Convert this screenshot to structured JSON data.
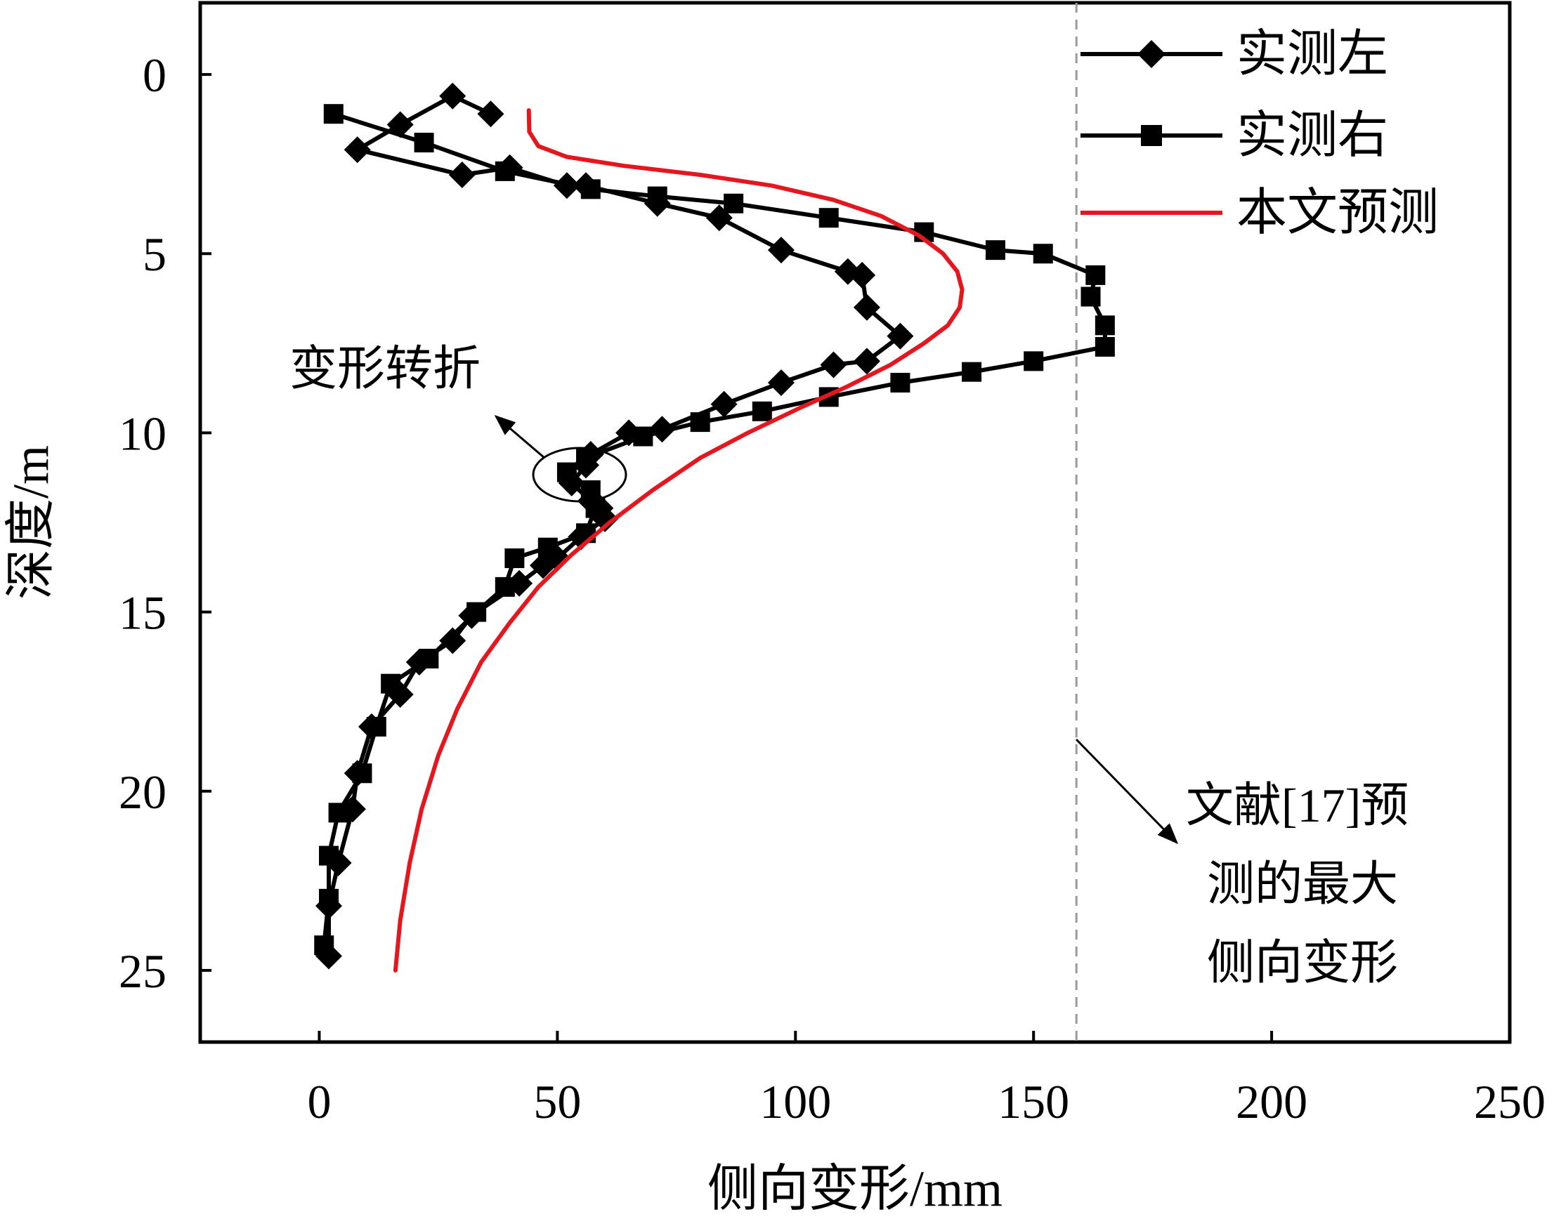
{
  "chart_data": {
    "type": "line",
    "title": "",
    "xlabel": "侧向变形/mm",
    "ylabel": "深度/m",
    "xlim": [
      -25,
      250
    ],
    "ylim": [
      -2,
      27
    ],
    "y_inverted": true,
    "grid": false,
    "legend_position": "top-right",
    "x_ticks": [
      0,
      50,
      100,
      150,
      200,
      250
    ],
    "y_ticks": [
      0,
      5,
      10,
      15,
      20,
      25
    ],
    "series": [
      {
        "name": "实测左",
        "color": "#000000",
        "marker": "diamond",
        "points": [
          [
            36,
            1.1
          ],
          [
            28,
            0.6
          ],
          [
            17,
            1.4
          ],
          [
            8,
            2.1
          ],
          [
            30,
            2.8
          ],
          [
            40,
            2.6
          ],
          [
            52,
            3.1
          ],
          [
            56,
            3.1
          ],
          [
            71,
            3.6
          ],
          [
            84,
            4.0
          ],
          [
            97,
            4.9
          ],
          [
            111,
            5.5
          ],
          [
            114,
            5.6
          ],
          [
            115,
            6.5
          ],
          [
            122,
            7.3
          ],
          [
            115,
            8.0
          ],
          [
            108,
            8.1
          ],
          [
            97,
            8.6
          ],
          [
            85,
            9.2
          ],
          [
            72,
            9.9
          ],
          [
            65,
            10.0
          ],
          [
            57,
            10.6
          ],
          [
            56,
            10.9
          ],
          [
            53,
            11.4
          ],
          [
            57,
            11.9
          ],
          [
            59,
            12.1
          ],
          [
            60,
            12.4
          ],
          [
            55,
            12.9
          ],
          [
            50,
            13.5
          ],
          [
            47,
            13.7
          ],
          [
            42,
            14.2
          ],
          [
            32,
            15.1
          ],
          [
            28,
            15.8
          ],
          [
            21,
            16.4
          ],
          [
            17,
            17.3
          ],
          [
            11,
            18.2
          ],
          [
            8,
            19.5
          ],
          [
            7,
            20.5
          ],
          [
            4,
            22.0
          ],
          [
            2,
            23.2
          ],
          [
            2,
            24.6
          ]
        ]
      },
      {
        "name": "实测右",
        "color": "#000000",
        "marker": "square",
        "points": [
          [
            3,
            1.1
          ],
          [
            22,
            1.9
          ],
          [
            39,
            2.7
          ],
          [
            57,
            3.2
          ],
          [
            71,
            3.4
          ],
          [
            87,
            3.6
          ],
          [
            107,
            4.0
          ],
          [
            127,
            4.4
          ],
          [
            142,
            4.9
          ],
          [
            152,
            5.0
          ],
          [
            163,
            5.6
          ],
          [
            162,
            6.2
          ],
          [
            165,
            7.0
          ],
          [
            165,
            7.6
          ],
          [
            150,
            8.0
          ],
          [
            137,
            8.3
          ],
          [
            122,
            8.6
          ],
          [
            107,
            9.0
          ],
          [
            93,
            9.4
          ],
          [
            80,
            9.7
          ],
          [
            68,
            10.1
          ],
          [
            56,
            10.7
          ],
          [
            52,
            11.1
          ],
          [
            57,
            11.6
          ],
          [
            58,
            12.1
          ],
          [
            56,
            12.8
          ],
          [
            48,
            13.2
          ],
          [
            41,
            13.5
          ],
          [
            39,
            14.3
          ],
          [
            33,
            15.0
          ],
          [
            23,
            16.3
          ],
          [
            15,
            17.0
          ],
          [
            12,
            18.2
          ],
          [
            9,
            19.5
          ],
          [
            4,
            20.6
          ],
          [
            2,
            21.8
          ],
          [
            2,
            23.0
          ],
          [
            1,
            24.3
          ]
        ]
      },
      {
        "name": "本文预测",
        "color": "#e5161e",
        "marker": "none",
        "points": [
          [
            44,
            1.0
          ],
          [
            44.1,
            1.6
          ],
          [
            46,
            2.0
          ],
          [
            52,
            2.3
          ],
          [
            64,
            2.55
          ],
          [
            80,
            2.8
          ],
          [
            95,
            3.1
          ],
          [
            108,
            3.5
          ],
          [
            118,
            3.95
          ],
          [
            126,
            4.5
          ],
          [
            131,
            5.0
          ],
          [
            134,
            5.5
          ],
          [
            135,
            6.0
          ],
          [
            134.5,
            6.5
          ],
          [
            132,
            7.0
          ],
          [
            127,
            7.5
          ],
          [
            120,
            8.1
          ],
          [
            111,
            8.7
          ],
          [
            101,
            9.3
          ],
          [
            90,
            10.0
          ],
          [
            80,
            10.7
          ],
          [
            70,
            11.6
          ],
          [
            61,
            12.5
          ],
          [
            53,
            13.4
          ],
          [
            46,
            14.3
          ],
          [
            40,
            15.3
          ],
          [
            34,
            16.4
          ],
          [
            29,
            17.7
          ],
          [
            25,
            19.0
          ],
          [
            21.5,
            20.5
          ],
          [
            19,
            22.0
          ],
          [
            17,
            23.6
          ],
          [
            16,
            25.0
          ]
        ]
      }
    ],
    "reference_line": {
      "x": 159,
      "style": "dashed",
      "color": "#999999"
    },
    "annotations": [
      {
        "text": "变形转折",
        "target": [
          56,
          11.2
        ]
      },
      {
        "text_lines": [
          "文献[17]预",
          "测的最大",
          "侧向变形"
        ],
        "target": [
          159,
          18.8
        ]
      }
    ]
  }
}
